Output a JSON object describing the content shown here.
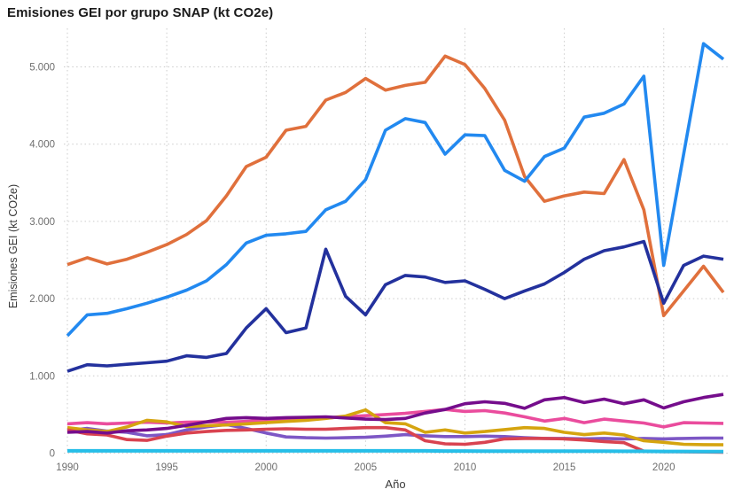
{
  "title": "Emisiones GEI por grupo SNAP (kt CO2e)",
  "chart_data": {
    "type": "line",
    "title": "Emisiones GEI por grupo SNAP (kt CO2e)",
    "xlabel": "Año",
    "ylabel": "Emisiones GEI (kt CO2e)",
    "xlim": [
      1990,
      2023
    ],
    "ylim": [
      0,
      5400
    ],
    "grid": "dotted",
    "legend_position": "none",
    "grid_color": "#cbcbcb",
    "x": [
      1990,
      1991,
      1992,
      1993,
      1994,
      1995,
      1996,
      1997,
      1998,
      1999,
      2000,
      2001,
      2002,
      2003,
      2004,
      2005,
      2006,
      2007,
      2008,
      2009,
      2010,
      2011,
      2012,
      2013,
      2014,
      2015,
      2016,
      2017,
      2018,
      2019,
      2020,
      2021,
      2022,
      2023
    ],
    "yticks": [
      {
        "value": 0,
        "label": "0"
      },
      {
        "value": 1000,
        "label": "1.000"
      },
      {
        "value": 2000,
        "label": "2.000"
      },
      {
        "value": 3000,
        "label": "3.000"
      },
      {
        "value": 4000,
        "label": "4.000"
      },
      {
        "value": 5000,
        "label": "5.000"
      }
    ],
    "xticks": [
      {
        "value": 1990,
        "label": "1990"
      },
      {
        "value": 1995,
        "label": "1995"
      },
      {
        "value": 2000,
        "label": "2000"
      },
      {
        "value": 2005,
        "label": "2005"
      },
      {
        "value": 2010,
        "label": "2010"
      },
      {
        "value": 2015,
        "label": "2015"
      },
      {
        "value": 2020,
        "label": "2020"
      }
    ],
    "series": [
      {
        "name": "pink-line",
        "color": "#EA4C9D",
        "width": 3.6,
        "values": [
          380,
          395,
          380,
          390,
          400,
          390,
          400,
          405,
          400,
          410,
          425,
          430,
          440,
          455,
          470,
          485,
          500,
          515,
          540,
          565,
          540,
          550,
          520,
          470,
          415,
          450,
          395,
          440,
          415,
          390,
          340,
          395,
          390,
          385
        ]
      },
      {
        "name": "violet-line",
        "color": "#7D57C5",
        "width": 3.6,
        "values": [
          290,
          320,
          285,
          270,
          225,
          240,
          300,
          340,
          370,
          320,
          260,
          210,
          200,
          195,
          200,
          205,
          220,
          240,
          225,
          215,
          215,
          220,
          215,
          200,
          190,
          190,
          185,
          190,
          185,
          190,
          185,
          190,
          195,
          195
        ]
      },
      {
        "name": "gold-line",
        "color": "#D5A40F",
        "width": 3.6,
        "values": [
          330,
          300,
          280,
          340,
          425,
          405,
          345,
          355,
          365,
          380,
          395,
          410,
          425,
          450,
          480,
          560,
          395,
          380,
          270,
          300,
          260,
          280,
          305,
          330,
          320,
          270,
          240,
          260,
          235,
          160,
          140,
          115,
          110,
          108
        ]
      },
      {
        "name": "crimson-line",
        "color": "#D94350",
        "width": 3.6,
        "values": [
          300,
          250,
          235,
          175,
          165,
          220,
          260,
          280,
          295,
          300,
          310,
          315,
          310,
          310,
          320,
          330,
          330,
          300,
          160,
          120,
          115,
          140,
          185,
          190,
          190,
          185,
          170,
          150,
          135,
          25,
          20,
          18,
          15,
          12
        ]
      },
      {
        "name": "dark-purple-line",
        "color": "#750D8C",
        "width": 3.6,
        "values": [
          270,
          280,
          260,
          290,
          300,
          320,
          360,
          405,
          450,
          460,
          450,
          460,
          465,
          470,
          455,
          440,
          435,
          450,
          520,
          565,
          640,
          665,
          645,
          580,
          690,
          720,
          655,
          700,
          640,
          690,
          585,
          665,
          720,
          760
        ]
      },
      {
        "name": "orange-line",
        "color": "#E0703C",
        "width": 3.6,
        "values": [
          2440,
          2530,
          2450,
          2510,
          2600,
          2700,
          2830,
          3010,
          3330,
          3710,
          3830,
          4180,
          4230,
          4570,
          4670,
          4850,
          4700,
          4760,
          4800,
          5140,
          5030,
          4720,
          4310,
          3580,
          3260,
          3330,
          3380,
          3360,
          3800,
          3150,
          1780,
          2100,
          2420,
          2080
        ]
      },
      {
        "name": "navy-line",
        "color": "#23319D",
        "width": 3.6,
        "values": [
          1060,
          1145,
          1130,
          1150,
          1170,
          1190,
          1260,
          1240,
          1290,
          1620,
          1870,
          1560,
          1620,
          2640,
          2030,
          1790,
          2180,
          2300,
          2280,
          2210,
          2230,
          2120,
          2000,
          2100,
          2190,
          2340,
          2510,
          2620,
          2670,
          2740,
          1940,
          2430,
          2550,
          2510
        ]
      },
      {
        "name": "light-blue-line",
        "color": "#2289F0",
        "width": 3.6,
        "values": [
          1520,
          1790,
          1810,
          1870,
          1940,
          2020,
          2110,
          2230,
          2440,
          2720,
          2820,
          2840,
          2870,
          3150,
          3260,
          3540,
          4180,
          4330,
          4280,
          3870,
          4120,
          4110,
          3660,
          3520,
          3840,
          3950,
          4350,
          4400,
          4520,
          4880,
          2430,
          3870,
          5300,
          5100
        ]
      },
      {
        "name": "cyan-line",
        "color": "#26BEE8",
        "width": 4,
        "values": [
          30,
          30,
          30,
          30,
          30,
          30,
          30,
          30,
          30,
          30,
          30,
          30,
          30,
          30,
          30,
          30,
          30,
          30,
          30,
          28,
          28,
          26,
          26,
          25,
          25,
          25,
          25,
          25,
          24,
          24,
          22,
          22,
          20,
          20
        ]
      }
    ]
  }
}
